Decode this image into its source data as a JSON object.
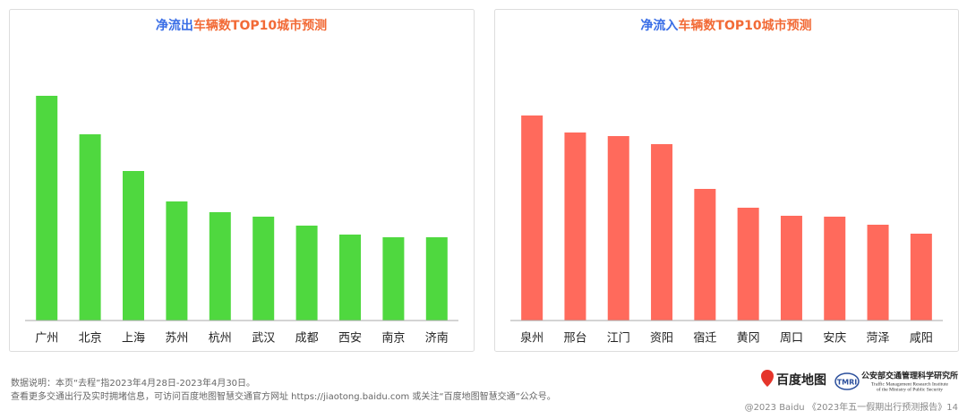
{
  "chart_data": [
    {
      "type": "bar",
      "title_parts": [
        "净流出",
        "车辆数TOP10城市预测"
      ],
      "title_colors": [
        "#3a6ee6",
        "#f26a36"
      ],
      "categories": [
        "广州",
        "北京",
        "上海",
        "苏州",
        "杭州",
        "武汉",
        "成都",
        "西安",
        "南京",
        "济南"
      ],
      "values": [
        251,
        208,
        167,
        133,
        121,
        116,
        106,
        96,
        93,
        93
      ],
      "color": "#4fd83f",
      "ylim": [
        0,
        300
      ]
    },
    {
      "type": "bar",
      "title_parts": [
        "净流入",
        "车辆数TOP10城市预测"
      ],
      "title_colors": [
        "#3a6ee6",
        "#f26a36"
      ],
      "categories": [
        "泉州",
        "邢台",
        "江门",
        "资阳",
        "宿迁",
        "黄冈",
        "周口",
        "安庆",
        "菏泽",
        "咸阳"
      ],
      "values": [
        229,
        210,
        206,
        197,
        147,
        126,
        117,
        116,
        107,
        97
      ],
      "color": "#ff6a5c",
      "ylim": [
        0,
        300
      ]
    }
  ],
  "footer": {
    "notes": [
      "数据说明：本页“去程”指2023年4月28日-2023年4月30日。",
      "查看更多交通出行及实时拥堵信息，可访问百度地图智慧交通官方网址 https://jiaotong.baidu.com 或关注“百度地图智慧交通”公众号。"
    ],
    "baidu_logo": "百度地图",
    "tmri_logo": "TMRI",
    "institute": [
      "公安部交通管理科学研究所",
      "Traffic Management Research Institute",
      "of the Ministry of Public Security"
    ],
    "copyright": "@2023 Baidu 《2023年五一假期出行预测报告》14"
  }
}
